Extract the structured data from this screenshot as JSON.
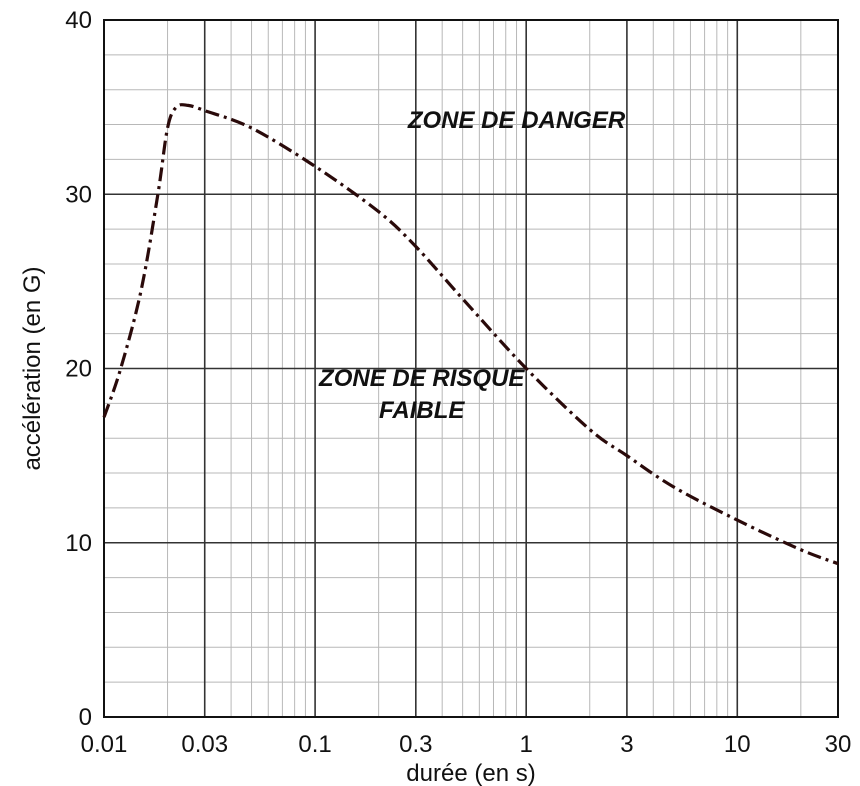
{
  "chart_data": {
    "type": "line",
    "title": "",
    "xlabel": "durée (en s)",
    "ylabel": "accélération (en G)",
    "x_scale": "log",
    "xlim": [
      0.01,
      30
    ],
    "ylim": [
      0,
      40
    ],
    "x_ticks": [
      0.01,
      0.03,
      0.1,
      0.3,
      1,
      3,
      10,
      30
    ],
    "x_tick_labels": [
      "0.01",
      "0.03",
      "0.1",
      "0.3",
      "1",
      "3",
      "10",
      "30"
    ],
    "y_ticks": [
      0,
      10,
      20,
      30,
      40
    ],
    "y_tick_labels": [
      "0",
      "10",
      "20",
      "30",
      "40"
    ],
    "grid": true,
    "series": [
      {
        "name": "",
        "line_style": "dash-dot",
        "color": "#2a0a0a",
        "x": [
          0.01,
          0.012,
          0.015,
          0.018,
          0.02,
          0.022,
          0.025,
          0.03,
          0.05,
          0.1,
          0.2,
          0.3,
          0.5,
          1,
          2,
          3,
          5,
          10,
          20,
          30
        ],
        "y": [
          17.2,
          20,
          24.5,
          30,
          33.8,
          35,
          35.1,
          34.8,
          33.8,
          31.6,
          29,
          27,
          24,
          20,
          16.5,
          15,
          13.2,
          11.3,
          9.6,
          8.8
        ]
      }
    ],
    "annotations": [
      {
        "text": "ZONE DE DANGER",
        "x": 0.9,
        "y": 33.8
      },
      {
        "text_lines": [
          "ZONE DE RISQUE",
          "FAIBLE"
        ],
        "x": 0.32,
        "y": 19
      }
    ]
  }
}
